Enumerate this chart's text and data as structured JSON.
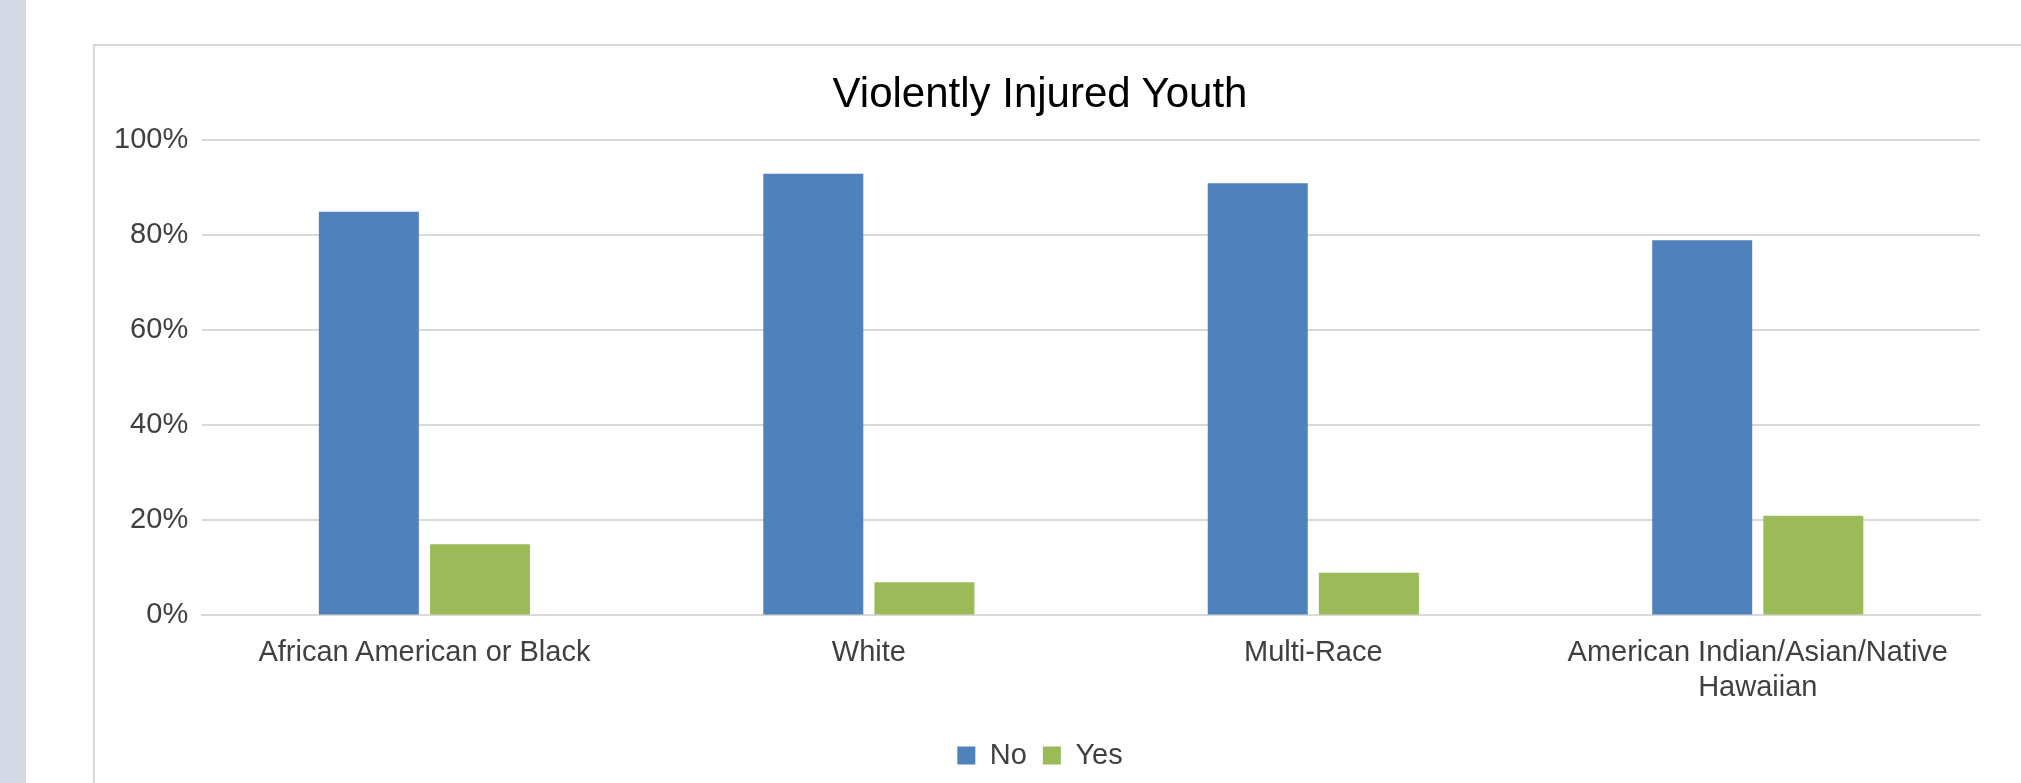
{
  "chart_data": {
    "type": "bar",
    "title": "Violently Injured Youth",
    "categories": [
      "African American or Black",
      "White",
      "Multi-Race",
      "American Indian/Asian/Native Hawaiian"
    ],
    "series": [
      {
        "name": "No",
        "color": "#4f81bd",
        "values": [
          85,
          93,
          91,
          79
        ]
      },
      {
        "name": "Yes",
        "color": "#9bbb59",
        "values": [
          15,
          7,
          9,
          21
        ]
      }
    ],
    "ylim": [
      0,
      100
    ],
    "yticks": [
      {
        "value": 0,
        "label": "0%"
      },
      {
        "value": 20,
        "label": "20%"
      },
      {
        "value": 40,
        "label": "40%"
      },
      {
        "value": 60,
        "label": "60%"
      },
      {
        "value": 80,
        "label": "80%"
      },
      {
        "value": 100,
        "label": "100%"
      }
    ],
    "grid": "y",
    "legend": "bottom"
  }
}
